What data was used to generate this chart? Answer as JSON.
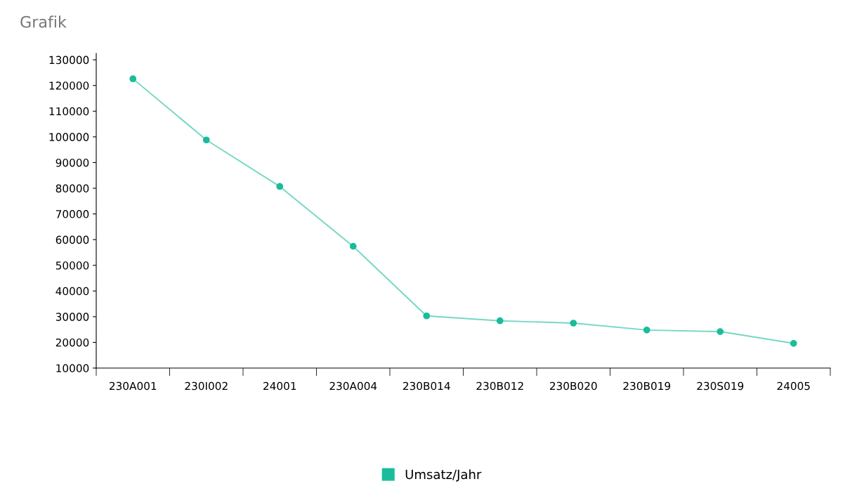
{
  "chart_data": {
    "type": "line",
    "title": "Grafik",
    "categories": [
      "230A001",
      "230I002",
      "24001",
      "230A004",
      "230B014",
      "230B012",
      "230B020",
      "230B019",
      "230S019",
      "24005"
    ],
    "series": [
      {
        "name": "Umsatz/Jahr",
        "color": "#1abc9c",
        "values": [
          122600,
          98800,
          80700,
          57400,
          30300,
          28400,
          27500,
          24800,
          24200,
          19600
        ]
      }
    ],
    "ylim": [
      10000,
      132500
    ],
    "yticks": [
      10000,
      20000,
      30000,
      40000,
      50000,
      60000,
      70000,
      80000,
      90000,
      100000,
      110000,
      120000,
      130000
    ],
    "grid": false,
    "legend": "bottom",
    "marker": "circle",
    "line_style": "solid"
  }
}
